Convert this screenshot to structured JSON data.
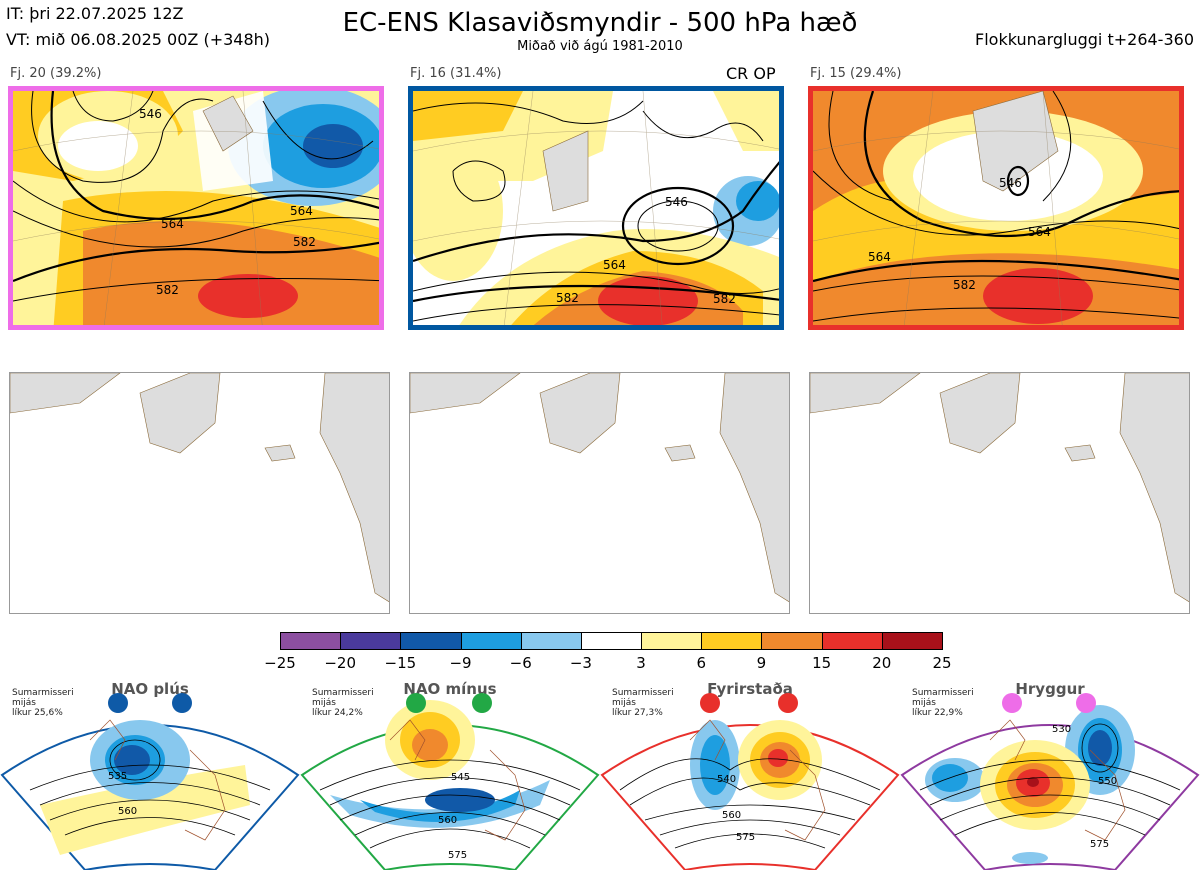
{
  "header": {
    "it": "IT: þri 22.07.2025 12Z",
    "vt": "VT: mið 06.08.2025 00Z  (+348h)",
    "title": "EC-ENS Klasaviðsmyndir - 500 hPa hæð",
    "subtitle": "Miðað við ágú 1981-2010",
    "window": "Flokkunargluggi t+264-360"
  },
  "clusters": [
    {
      "label": "Fj. 20 (39.2%)",
      "border": "#ee6de8",
      "contours": [
        "546",
        "564",
        "582"
      ]
    },
    {
      "label": "Fj. 16 (31.4%)",
      "border": "#0057a0",
      "tag": "CR OP",
      "contours": [
        "546",
        "564",
        "582"
      ]
    },
    {
      "label": "Fj. 15 (29.4%)",
      "border": "#e8302b",
      "contours": [
        "546",
        "564",
        "582"
      ]
    }
  ],
  "chart_data": {
    "type": "heatmap",
    "title": "EC-ENS Klasaviðsmyndir - 500 hPa hæð",
    "subtitle": "Miðað við ágú 1981-2010",
    "colorbar": {
      "ticks": [
        "−25",
        "−20",
        "−15",
        "−9",
        "−6",
        "−3",
        "3",
        "6",
        "9",
        "15",
        "20",
        "25"
      ],
      "bins": [
        {
          "from": -25,
          "to": -20,
          "color": "#8c4fa0"
        },
        {
          "from": -20,
          "to": -15,
          "color": "#4a3a9c"
        },
        {
          "from": -15,
          "to": -9,
          "color": "#1159a8"
        },
        {
          "from": -9,
          "to": -6,
          "color": "#1e9ee0"
        },
        {
          "from": -6,
          "to": -3,
          "color": "#88c8ee"
        },
        {
          "from": -3,
          "to": 3,
          "color": "#ffffff"
        },
        {
          "from": 3,
          "to": 6,
          "color": "#fff49a"
        },
        {
          "from": 6,
          "to": 9,
          "color": "#ffcc22"
        },
        {
          "from": 9,
          "to": 15,
          "color": "#f0892d"
        },
        {
          "from": 15,
          "to": 20,
          "color": "#e8302b"
        },
        {
          "from": 20,
          "to": 25,
          "color": "#a8111a"
        }
      ]
    },
    "clusters": [
      {
        "name": "Fj. 20",
        "members": 20,
        "percent": 39.2,
        "contours": [
          546,
          564,
          582
        ]
      },
      {
        "name": "Fj. 16",
        "members": 16,
        "percent": 31.4,
        "contours": [
          546,
          564,
          582
        ]
      },
      {
        "name": "Fj. 15",
        "members": 15,
        "percent": 29.4,
        "contours": [
          546,
          564,
          582
        ]
      }
    ],
    "regimes": [
      {
        "name": "NAO plús",
        "likelihood": 25.6,
        "contours": [
          535,
          560
        ]
      },
      {
        "name": "NAO mínus",
        "likelihood": 24.2,
        "contours": [
          545,
          560,
          575
        ]
      },
      {
        "name": "Fyrirstaða",
        "likelihood": 27.3,
        "contours": [
          540,
          560,
          575
        ]
      },
      {
        "name": "Hryggur",
        "likelihood": 22.9,
        "contours": [
          530,
          550,
          575
        ]
      }
    ]
  },
  "regimes": [
    {
      "name": "NAO plús",
      "season1": "Sumarmisseri",
      "season2": "mijás",
      "likur": "líkur 25,6%",
      "color": "#0e5aa7",
      "border": "#0e5aa7",
      "c1": "535",
      "c2": "560",
      "c3": ""
    },
    {
      "name": "NAO mínus",
      "season1": "Sumarmisseri",
      "season2": "mijás",
      "likur": "líkur 24,2%",
      "color": "#22a845",
      "border": "#22a845",
      "c1": "545",
      "c2": "560",
      "c3": "575"
    },
    {
      "name": "Fyrirstaða",
      "season1": "Sumarmisseri",
      "season2": "mijás",
      "likur": "líkur 27,3%",
      "color": "#e8302b",
      "border": "#e8302b",
      "c1": "540",
      "c2": "560",
      "c3": "575"
    },
    {
      "name": "Hryggur",
      "season1": "Sumarmisseri",
      "season2": "mijás",
      "likur": "líkur 22,9%",
      "color": "#ee6de8",
      "border": "#8e3aa0",
      "c1": "530",
      "c2": "550",
      "c3": "575"
    }
  ]
}
